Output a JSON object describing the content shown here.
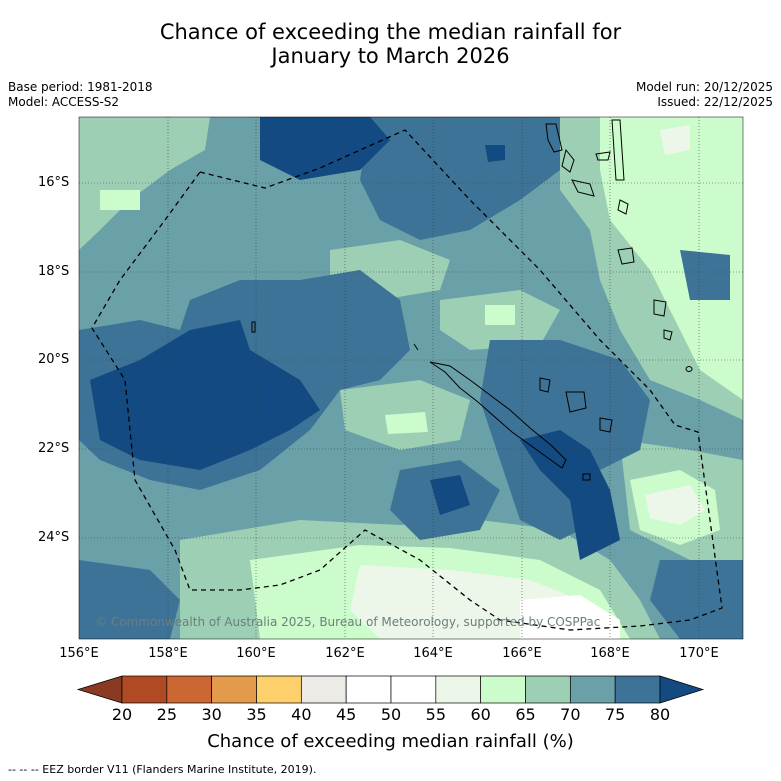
{
  "title_line1": "Chance of exceeding the median rainfall for",
  "title_line2": "January to March 2026",
  "meta_left": {
    "base_period": "Base period: 1981-2018",
    "model": "Model: ACCESS-S2"
  },
  "meta_right": {
    "model_run": "Model run: 20/12/2025",
    "issued": "Issued: 22/12/2025"
  },
  "copyright": "© Commonwealth of Australia 2025, Bureau of Meteorology, supported by COSPPac",
  "axes": {
    "lon_labels": [
      "156°E",
      "158°E",
      "160°E",
      "162°E",
      "164°E",
      "166°E",
      "168°E",
      "170°E"
    ],
    "lat_labels": [
      "16°S",
      "18°S",
      "20°S",
      "22°S",
      "24°S"
    ]
  },
  "colorbar": {
    "ticks": [
      "20",
      "25",
      "30",
      "35",
      "40",
      "45",
      "50",
      "55",
      "60",
      "65",
      "70",
      "75",
      "80"
    ],
    "colors": [
      "#8a3a22",
      "#b04a24",
      "#cc6633",
      "#e39a4b",
      "#fed06b",
      "#ecebe6",
      "#ffffff",
      "#ffffff",
      "#ecf7ea",
      "#ccfccc",
      "#9ccfb4",
      "#6aa0a8",
      "#3d7396",
      "#134a82"
    ],
    "title": "Chance of exceeding median rainfall (%)"
  },
  "footer": "--  --  -- EEZ border V11 (Flanders Marine Institute, 2019)."
}
